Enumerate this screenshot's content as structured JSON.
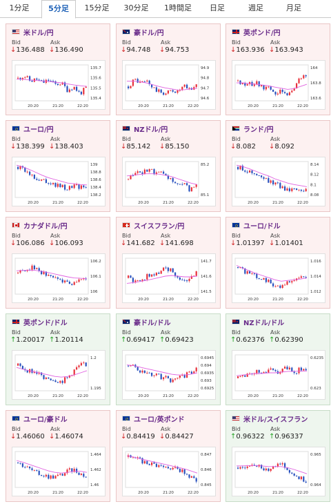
{
  "tabs": [
    {
      "label": "1分足"
    },
    {
      "label": "5分足",
      "active": true
    },
    {
      "label": "15分足"
    },
    {
      "label": "30分足"
    },
    {
      "label": "1時間足"
    },
    {
      "label": "日足"
    },
    {
      "label": "週足"
    },
    {
      "label": "月足"
    }
  ],
  "bid_label": "Bid",
  "ask_label": "Ask",
  "colors": {
    "up_candle": "#e8323c",
    "down_candle": "#2a52be",
    "ma_line": "#e060e0",
    "down_arrow": "#d02020",
    "up_arrow": "#20a020"
  },
  "cards": [
    {
      "pair": "米ドル/円",
      "flag": "us",
      "dir": "down",
      "bid": "136.488",
      "ask": "136.490",
      "chart_data": {
        "type": "candlestick",
        "xticks": [
          "20:20",
          "21:20",
          "22:20"
        ],
        "yticks": [
          "135.7",
          "135.6",
          "135.5",
          "135.4"
        ],
        "ylim": [
          135.38,
          135.75
        ],
        "trend": [
          0.62,
          0.7,
          0.55,
          0.6,
          0.5,
          0.58,
          0.45,
          0.5,
          0.3,
          0.4,
          0.2,
          0.35
        ],
        "ma": [
          0.6,
          0.6,
          0.58,
          0.57,
          0.55,
          0.54,
          0.52,
          0.5,
          0.47,
          0.44,
          0.42,
          0.4
        ]
      }
    },
    {
      "pair": "豪ドル/円",
      "flag": "au",
      "dir": "down",
      "bid": "94.748",
      "ask": "94.753",
      "chart_data": {
        "type": "candlestick",
        "xticks": [
          "20:20",
          "21:20",
          "22:20"
        ],
        "yticks": [
          "94.9",
          "94.8",
          "94.7",
          "94.6"
        ],
        "ylim": [
          94.58,
          94.92
        ],
        "trend": [
          0.4,
          0.6,
          0.5,
          0.55,
          0.35,
          0.25,
          0.2,
          0.3,
          0.25,
          0.4,
          0.3,
          0.45
        ],
        "ma": [
          0.55,
          0.55,
          0.53,
          0.5,
          0.45,
          0.4,
          0.36,
          0.33,
          0.3,
          0.31,
          0.33,
          0.35
        ]
      }
    },
    {
      "pair": "英ポンド/円",
      "flag": "gb",
      "dir": "down",
      "bid": "163.936",
      "ask": "163.943",
      "chart_data": {
        "type": "candlestick",
        "xticks": [
          "20:20",
          "21:20",
          "22:20"
        ],
        "yticks": [
          "164",
          "163.8",
          "163.6"
        ],
        "ylim": [
          163.5,
          164.1
        ],
        "trend": [
          0.55,
          0.5,
          0.45,
          0.5,
          0.35,
          0.4,
          0.2,
          0.25,
          0.15,
          0.35,
          0.6,
          0.7
        ],
        "ma": [
          0.5,
          0.5,
          0.48,
          0.46,
          0.44,
          0.42,
          0.38,
          0.35,
          0.32,
          0.34,
          0.4,
          0.46
        ]
      }
    },
    {
      "pair": "ユーロ/円",
      "flag": "eu",
      "dir": "down",
      "bid": "138.399",
      "ask": "138.403",
      "chart_data": {
        "type": "candlestick",
        "xticks": [
          "20:20",
          "21:20",
          "22:20"
        ],
        "yticks": [
          "139",
          "138.8",
          "138.6",
          "138.4",
          "138.2"
        ],
        "ylim": [
          138.15,
          139.05
        ],
        "trend": [
          0.85,
          0.75,
          0.65,
          0.55,
          0.5,
          0.45,
          0.35,
          0.3,
          0.25,
          0.35,
          0.3,
          0.32
        ],
        "ma": [
          0.9,
          0.85,
          0.78,
          0.7,
          0.62,
          0.55,
          0.5,
          0.45,
          0.4,
          0.38,
          0.36,
          0.35
        ]
      }
    },
    {
      "pair": "NZドル/円",
      "flag": "nz",
      "dir": "down",
      "bid": "85.142",
      "ask": "85.150",
      "chart_data": {
        "type": "candlestick",
        "xticks": [
          "20:20",
          "21:20",
          "22:20"
        ],
        "yticks": [
          "85.2",
          "85.1"
        ],
        "ylim": [
          85.02,
          85.25
        ],
        "trend": [
          0.5,
          0.65,
          0.7,
          0.75,
          0.72,
          0.7,
          0.55,
          0.5,
          0.3,
          0.35,
          0.2,
          0.3
        ],
        "ma": [
          0.6,
          0.62,
          0.64,
          0.66,
          0.66,
          0.65,
          0.62,
          0.58,
          0.52,
          0.46,
          0.4,
          0.36
        ]
      }
    },
    {
      "pair": "ランド/円",
      "flag": "za",
      "dir": "down",
      "bid": "8.082",
      "ask": "8.092",
      "chart_data": {
        "type": "candlestick",
        "xticks": [
          "20:20",
          "21:20",
          "22:20"
        ],
        "yticks": [
          "8.14",
          "8.12",
          "8.1",
          "8.08"
        ],
        "ylim": [
          8.07,
          8.15
        ],
        "trend": [
          0.85,
          0.8,
          0.7,
          0.62,
          0.55,
          0.45,
          0.38,
          0.3,
          0.22,
          0.28,
          0.25,
          0.2
        ],
        "ma": [
          0.9,
          0.86,
          0.8,
          0.73,
          0.66,
          0.6,
          0.52,
          0.46,
          0.4,
          0.36,
          0.33,
          0.3
        ]
      }
    },
    {
      "pair": "カナダドル/円",
      "flag": "ca",
      "dir": "down",
      "bid": "106.086",
      "ask": "106.093",
      "chart_data": {
        "type": "candlestick",
        "xticks": [
          "20:20",
          "21:20",
          "22:20"
        ],
        "yticks": [
          "106.2",
          "106.1",
          "106"
        ],
        "ylim": [
          105.95,
          106.25
        ],
        "trend": [
          0.6,
          0.65,
          0.75,
          0.7,
          0.6,
          0.5,
          0.45,
          0.4,
          0.35,
          0.3,
          0.45,
          0.4
        ],
        "ma": [
          0.65,
          0.66,
          0.67,
          0.66,
          0.63,
          0.6,
          0.56,
          0.52,
          0.48,
          0.45,
          0.44,
          0.43
        ]
      }
    },
    {
      "pair": "スイスフラン/円",
      "flag": "ch",
      "dir": "down",
      "bid": "141.682",
      "ask": "141.698",
      "chart_data": {
        "type": "candlestick",
        "xticks": [
          "20:20",
          "21:20",
          "22:20"
        ],
        "yticks": [
          "141.7",
          "141.6",
          "141.5"
        ],
        "ylim": [
          141.45,
          141.75
        ],
        "trend": [
          0.45,
          0.35,
          0.4,
          0.5,
          0.55,
          0.6,
          0.75,
          0.65,
          0.5,
          0.3,
          0.45,
          0.65
        ],
        "ma": [
          0.3,
          0.32,
          0.35,
          0.38,
          0.42,
          0.46,
          0.5,
          0.52,
          0.5,
          0.48,
          0.48,
          0.5
        ]
      }
    },
    {
      "pair": "ユーロ/ドル",
      "flag": "eu",
      "dir": "down",
      "bid": "1.01397",
      "ask": "1.01401",
      "chart_data": {
        "type": "candlestick",
        "xticks": [
          "20:20",
          "21:20",
          "22:20"
        ],
        "yticks": [
          "1.016",
          "1.014",
          "1.012"
        ],
        "ylim": [
          1.011,
          1.0175
        ],
        "trend": [
          0.75,
          0.65,
          0.55,
          0.5,
          0.45,
          0.35,
          0.25,
          0.2,
          0.3,
          0.4,
          0.45,
          0.5
        ],
        "ma": [
          0.8,
          0.72,
          0.65,
          0.58,
          0.52,
          0.46,
          0.4,
          0.36,
          0.38,
          0.4,
          0.42,
          0.45
        ]
      }
    },
    {
      "pair": "英ポンド/ドル",
      "flag": "gb",
      "dir": "up",
      "bid": "1.20017",
      "ask": "1.20114",
      "chart_data": {
        "type": "candlestick",
        "xticks": [
          "20:20",
          "21:20",
          "22:20"
        ],
        "yticks": [
          "1.2",
          "1.195"
        ],
        "ylim": [
          1.192,
          1.203
        ],
        "trend": [
          0.7,
          0.6,
          0.55,
          0.5,
          0.4,
          0.35,
          0.3,
          0.25,
          0.35,
          0.55,
          0.7,
          0.75
        ],
        "ma": [
          0.65,
          0.6,
          0.56,
          0.52,
          0.48,
          0.44,
          0.4,
          0.38,
          0.4,
          0.44,
          0.5,
          0.56
        ]
      }
    },
    {
      "pair": "豪ドル/ドル",
      "flag": "au",
      "dir": "up",
      "bid": "0.69417",
      "ask": "0.69423",
      "chart_data": {
        "type": "candlestick",
        "xticks": [
          "20:20",
          "21:20",
          "22:20"
        ],
        "yticks": [
          "0.6945",
          "0.694",
          "0.6935",
          "0.693",
          "0.6925"
        ],
        "ylim": [
          0.6922,
          0.6948
        ],
        "trend": [
          0.7,
          0.65,
          0.55,
          0.5,
          0.45,
          0.4,
          0.35,
          0.3,
          0.38,
          0.42,
          0.5,
          0.6
        ],
        "ma": [
          0.72,
          0.7,
          0.66,
          0.62,
          0.58,
          0.54,
          0.5,
          0.46,
          0.44,
          0.44,
          0.46,
          0.5
        ]
      }
    },
    {
      "pair": "NZドル/ドル",
      "flag": "nz",
      "dir": "up",
      "bid": "0.62376",
      "ask": "0.62390",
      "chart_data": {
        "type": "candlestick",
        "xticks": [
          "20:20",
          "21:20",
          "22:20"
        ],
        "yticks": [
          "0.6235",
          "0.623"
        ],
        "ylim": [
          0.6227,
          0.624
        ],
        "trend": [
          0.35,
          0.45,
          0.5,
          0.55,
          0.45,
          0.6,
          0.5,
          0.55,
          0.65,
          0.5,
          0.6,
          0.55
        ],
        "ma": [
          0.42,
          0.44,
          0.46,
          0.48,
          0.48,
          0.5,
          0.5,
          0.52,
          0.54,
          0.54,
          0.55,
          0.55
        ]
      }
    },
    {
      "pair": "ユーロ/豪ドル",
      "flag": "eu",
      "dir": "down",
      "bid": "1.46060",
      "ask": "1.46074",
      "chart_data": {
        "type": "candlestick",
        "xticks": [
          "20:20",
          "21:20",
          "22:20"
        ],
        "yticks": [
          "1.464",
          "1.462",
          "1.46"
        ],
        "ylim": [
          1.4595,
          1.4655
        ],
        "trend": [
          0.7,
          0.6,
          0.5,
          0.4,
          0.35,
          0.3,
          0.3,
          0.35,
          0.45,
          0.5,
          0.4,
          0.3
        ],
        "ma": [
          0.75,
          0.7,
          0.64,
          0.58,
          0.52,
          0.46,
          0.42,
          0.4,
          0.42,
          0.45,
          0.45,
          0.42
        ]
      }
    },
    {
      "pair": "ユーロ/英ポンド",
      "flag": "eu",
      "dir": "down",
      "bid": "0.84419",
      "ask": "0.84427",
      "chart_data": {
        "type": "candlestick",
        "xticks": [
          "20:20",
          "21:20",
          "22:20"
        ],
        "yticks": [
          "0.847",
          "0.846",
          "0.845"
        ],
        "ylim": [
          0.8438,
          0.8475
        ],
        "trend": [
          0.85,
          0.8,
          0.75,
          0.7,
          0.65,
          0.6,
          0.58,
          0.55,
          0.5,
          0.45,
          0.3,
          0.2
        ],
        "ma": [
          0.88,
          0.85,
          0.8,
          0.76,
          0.72,
          0.68,
          0.64,
          0.6,
          0.56,
          0.52,
          0.46,
          0.4
        ]
      }
    },
    {
      "pair": "米ドル/スイスフラン",
      "flag": "us",
      "dir": "up",
      "bid": "0.96322",
      "ask": "0.96337",
      "chart_data": {
        "type": "candlestick",
        "xticks": [
          "20:20",
          "21:20",
          "22:20"
        ],
        "yticks": [
          "0.965",
          "0.964"
        ],
        "ylim": [
          0.9632,
          0.9656
        ],
        "trend": [
          0.55,
          0.6,
          0.65,
          0.6,
          0.55,
          0.5,
          0.6,
          0.65,
          0.5,
          0.35,
          0.25,
          0.2
        ],
        "ma": [
          0.6,
          0.6,
          0.61,
          0.61,
          0.6,
          0.58,
          0.58,
          0.58,
          0.55,
          0.5,
          0.44,
          0.38
        ]
      }
    }
  ]
}
